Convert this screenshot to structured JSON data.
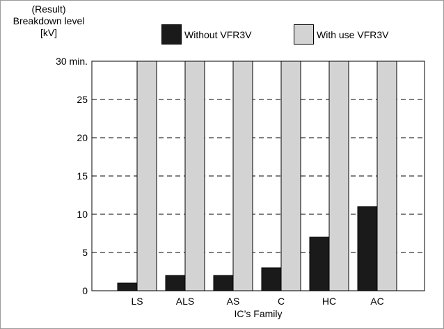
{
  "chart_data": {
    "type": "bar",
    "title": "",
    "ylabel_lines": [
      "(Result)",
      "Breakdown level",
      "[kV]"
    ],
    "xlabel": "IC’s Family",
    "categories": [
      "LS",
      "ALS",
      "AS",
      "C",
      "HC",
      "AC"
    ],
    "series": [
      {
        "name": "Without VFR3V",
        "color": "#1a1a1a",
        "values": [
          1,
          2,
          2,
          3,
          7,
          11
        ]
      },
      {
        "name": "With use VFR3V",
        "color": "#d3d3d3",
        "values": [
          30,
          30,
          30,
          30,
          30,
          30
        ]
      }
    ],
    "ylim": [
      0,
      30
    ],
    "yticks": [
      {
        "value": 0,
        "label": "0"
      },
      {
        "value": 5,
        "label": "5"
      },
      {
        "value": 10,
        "label": "10"
      },
      {
        "value": 15,
        "label": "15"
      },
      {
        "value": 20,
        "label": "20"
      },
      {
        "value": 25,
        "label": "25"
      },
      {
        "value": 30,
        "label": "30 min."
      }
    ],
    "grid": "horizontal-dashed",
    "legend": "top"
  }
}
